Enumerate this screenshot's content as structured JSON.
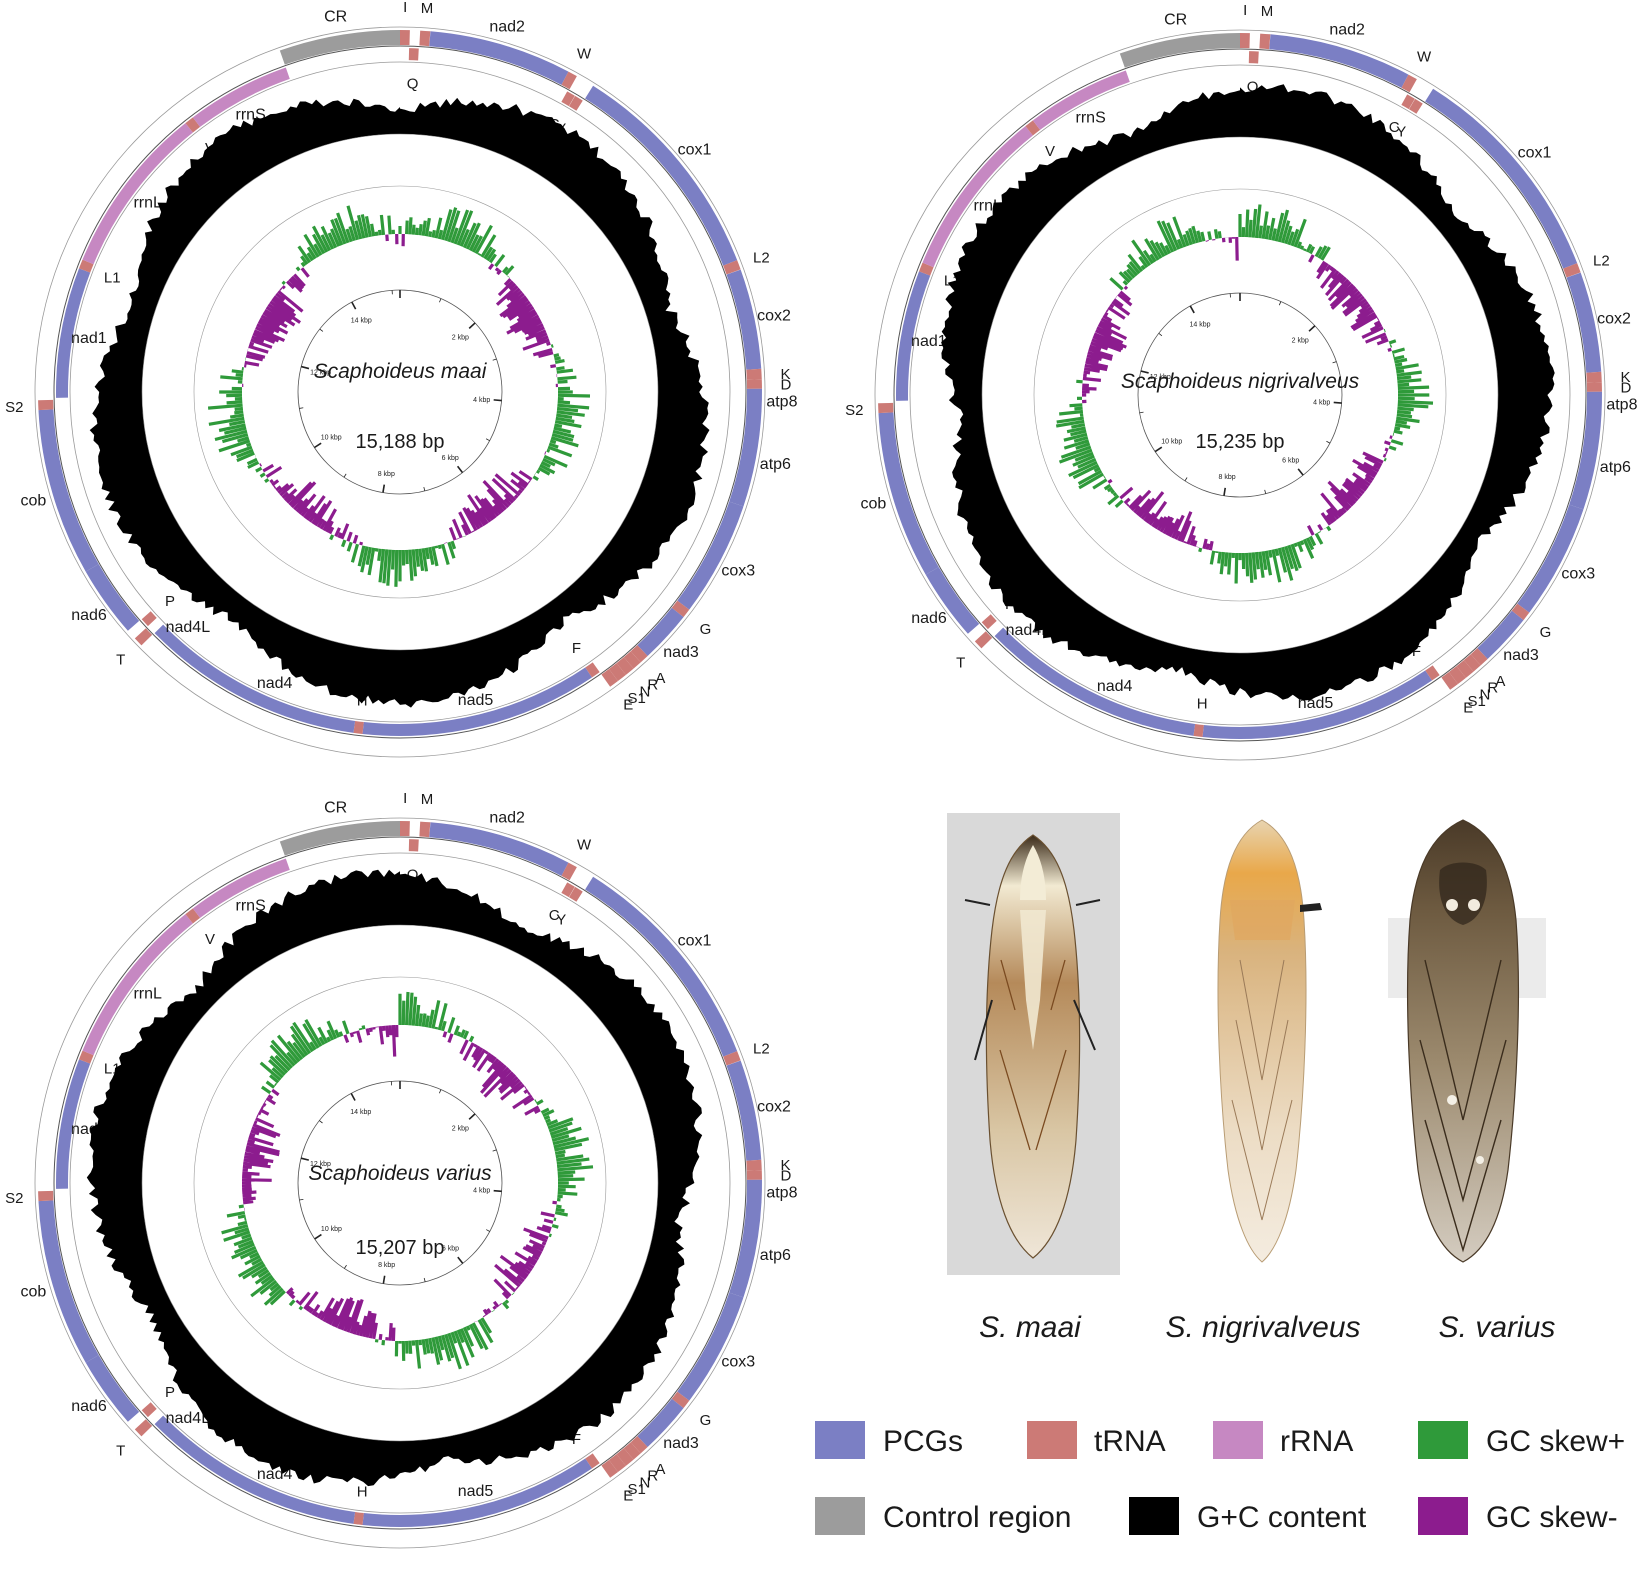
{
  "colors": {
    "pcg": "#7b7fc4",
    "trna": "#cc7a76",
    "rrna": "#c688c2",
    "control_region": "#9c9c9c",
    "gc_content": "#000000",
    "gc_skew_pos": "#2f9a3a",
    "gc_skew_neg": "#8c1c8e"
  },
  "maps": [
    {
      "species": "Scaphoideus maai",
      "length_label": "15,188 bp",
      "length_bp": 15188,
      "scale_labels": [
        "2 kbp",
        "4 kbp",
        "6 kbp",
        "8 kbp",
        "10 kbp",
        "12 kbp",
        "14 kbp"
      ]
    },
    {
      "species": "Scaphoideus nigrivalveus",
      "length_label": "15,235 bp",
      "length_bp": 15235,
      "scale_labels": [
        "2 kbp",
        "4 kbp",
        "6 kbp",
        "8 kbp",
        "10 kbp",
        "12 kbp",
        "14 kbp"
      ]
    },
    {
      "species": "Scaphoideus varius",
      "length_label": "15,207 bp",
      "length_bp": 15207,
      "scale_labels": [
        "2 kbp",
        "4 kbp",
        "6 kbp",
        "8 kbp",
        "10 kbp",
        "12 kbp",
        "14 kbp"
      ]
    }
  ],
  "genes": [
    {
      "label": "I",
      "type": "trna",
      "strand": "+",
      "start": 0,
      "end": 66
    },
    {
      "label": "Q",
      "type": "trna",
      "strand": "-",
      "start": 64,
      "end": 132
    },
    {
      "label": "M",
      "type": "trna",
      "strand": "+",
      "start": 135,
      "end": 203
    },
    {
      "label": "nad2",
      "type": "pcg",
      "strand": "+",
      "start": 204,
      "end": 1170
    },
    {
      "label": "W",
      "type": "trna",
      "strand": "+",
      "start": 1170,
      "end": 1234
    },
    {
      "label": "C",
      "type": "trna",
      "strand": "-",
      "start": 1227,
      "end": 1289
    },
    {
      "label": "Y",
      "type": "trna",
      "strand": "-",
      "start": 1291,
      "end": 1354
    },
    {
      "label": "cox1",
      "type": "pcg",
      "strand": "+",
      "start": 1360,
      "end": 2896
    },
    {
      "label": "L2",
      "type": "trna",
      "strand": "+",
      "start": 2896,
      "end": 2962
    },
    {
      "label": "cox2",
      "type": "pcg",
      "strand": "+",
      "start": 2963,
      "end": 3642
    },
    {
      "label": "K",
      "type": "trna",
      "strand": "+",
      "start": 3642,
      "end": 3712
    },
    {
      "label": "D",
      "type": "trna",
      "strand": "+",
      "start": 3712,
      "end": 3775
    },
    {
      "label": "atp8",
      "type": "pcg",
      "strand": "+",
      "start": 3775,
      "end": 3928
    },
    {
      "label": "atp6",
      "type": "pcg",
      "strand": "+",
      "start": 3922,
      "end": 4574
    },
    {
      "label": "cox3",
      "type": "pcg",
      "strand": "+",
      "start": 4574,
      "end": 5356
    },
    {
      "label": "G",
      "type": "trna",
      "strand": "+",
      "start": 5356,
      "end": 5419
    },
    {
      "label": "nad3",
      "type": "pcg",
      "strand": "+",
      "start": 5419,
      "end": 5773
    },
    {
      "label": "A",
      "type": "trna",
      "strand": "+",
      "start": 5773,
      "end": 5836
    },
    {
      "label": "R",
      "type": "trna",
      "strand": "+",
      "start": 5836,
      "end": 5899
    },
    {
      "label": "N",
      "type": "trna",
      "strand": "+",
      "start": 5899,
      "end": 5965
    },
    {
      "label": "S1",
      "type": "trna",
      "strand": "+",
      "start": 5965,
      "end": 6032
    },
    {
      "label": "E",
      "type": "trna",
      "strand": "+",
      "start": 6032,
      "end": 6097
    },
    {
      "label": "F",
      "type": "trna",
      "strand": "-",
      "start": 6097,
      "end": 6163
    },
    {
      "label": "nad5",
      "type": "pcg",
      "strand": "-",
      "start": 6163,
      "end": 7858
    },
    {
      "label": "H",
      "type": "trna",
      "strand": "-",
      "start": 7858,
      "end": 7922
    },
    {
      "label": "nad4",
      "type": "pcg",
      "strand": "-",
      "start": 7922,
      "end": 9238
    },
    {
      "label": "nad4L",
      "type": "pcg",
      "strand": "-",
      "start": 9232,
      "end": 9514
    },
    {
      "label": "T",
      "type": "trna",
      "strand": "+",
      "start": 9517,
      "end": 9581
    },
    {
      "label": "P",
      "type": "trna",
      "strand": "-",
      "start": 9582,
      "end": 9647
    },
    {
      "label": "nad6",
      "type": "pcg",
      "strand": "+",
      "start": 9650,
      "end": 10136
    },
    {
      "label": "cob",
      "type": "pcg",
      "strand": "+",
      "start": 10136,
      "end": 11270
    },
    {
      "label": "S2",
      "type": "trna",
      "strand": "+",
      "start": 11270,
      "end": 11336
    },
    {
      "label": "nad1",
      "type": "pcg",
      "strand": "-",
      "start": 11350,
      "end": 12280
    },
    {
      "label": "L1",
      "type": "trna",
      "strand": "-",
      "start": 12280,
      "end": 12346
    },
    {
      "label": "rrnL",
      "type": "rrna",
      "strand": "-",
      "start": 12346,
      "end": 13560
    },
    {
      "label": "V",
      "type": "trna",
      "strand": "-",
      "start": 13560,
      "end": 13626
    },
    {
      "label": "rrnS",
      "type": "rrna",
      "strand": "-",
      "start": 13626,
      "end": 14370
    },
    {
      "label": "CR",
      "type": "control_region",
      "strand": "+",
      "start": 14370,
      "end": 15188
    }
  ],
  "species_photos": [
    {
      "caption": "S. maai"
    },
    {
      "caption": "S. nigrivalveus"
    },
    {
      "caption": "S. varius"
    }
  ],
  "legend": [
    {
      "label": "PCGs",
      "color_key": "pcg"
    },
    {
      "label": "tRNA",
      "color_key": "trna"
    },
    {
      "label": "rRNA",
      "color_key": "rrna"
    },
    {
      "label": "GC skew+",
      "color_key": "gc_skew_pos"
    },
    {
      "label": "Control region",
      "color_key": "control_region"
    },
    {
      "label": "G+C content",
      "color_key": "gc_content"
    },
    {
      "label": "GC skew-",
      "color_key": "gc_skew_neg"
    }
  ]
}
